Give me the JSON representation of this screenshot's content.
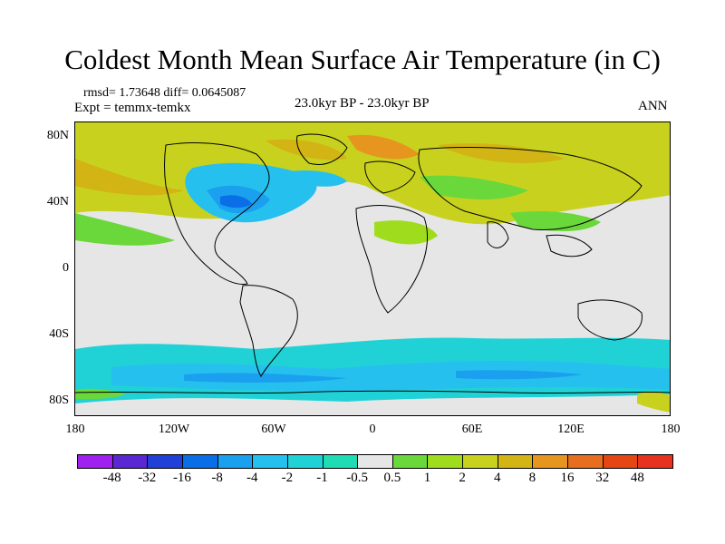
{
  "title": "Coldest Month Mean Surface Air Temperature (in C)",
  "stats": "rmsd= 1.73648 diff= 0.0645087",
  "experiment": "Expt = temmx-temkx",
  "period": "23.0kyr BP - 23.0kyr BP",
  "season": "ANN",
  "lat_labels": [
    "80N",
    "40N",
    "0",
    "40S",
    "80S"
  ],
  "lon_labels": [
    "180",
    "120W",
    "60W",
    "0",
    "60E",
    "120E",
    "180"
  ],
  "colorbar": {
    "labels": [
      "-48",
      "-32",
      "-16",
      "-8",
      "-4",
      "-2",
      "-1",
      "-0.5",
      "0.5",
      "1",
      "2",
      "4",
      "8",
      "16",
      "32",
      "48"
    ],
    "colors": [
      "#a020f0",
      "#5a28d2",
      "#2040d8",
      "#0a6ee6",
      "#1aa0ee",
      "#26c0ee",
      "#20d2d6",
      "#20dcb4",
      "#e6e6e6",
      "#6ad83a",
      "#a0dc1e",
      "#c8d21e",
      "#d2b414",
      "#e6961e",
      "#e66e1e",
      "#e64614",
      "#e6321e"
    ]
  }
}
